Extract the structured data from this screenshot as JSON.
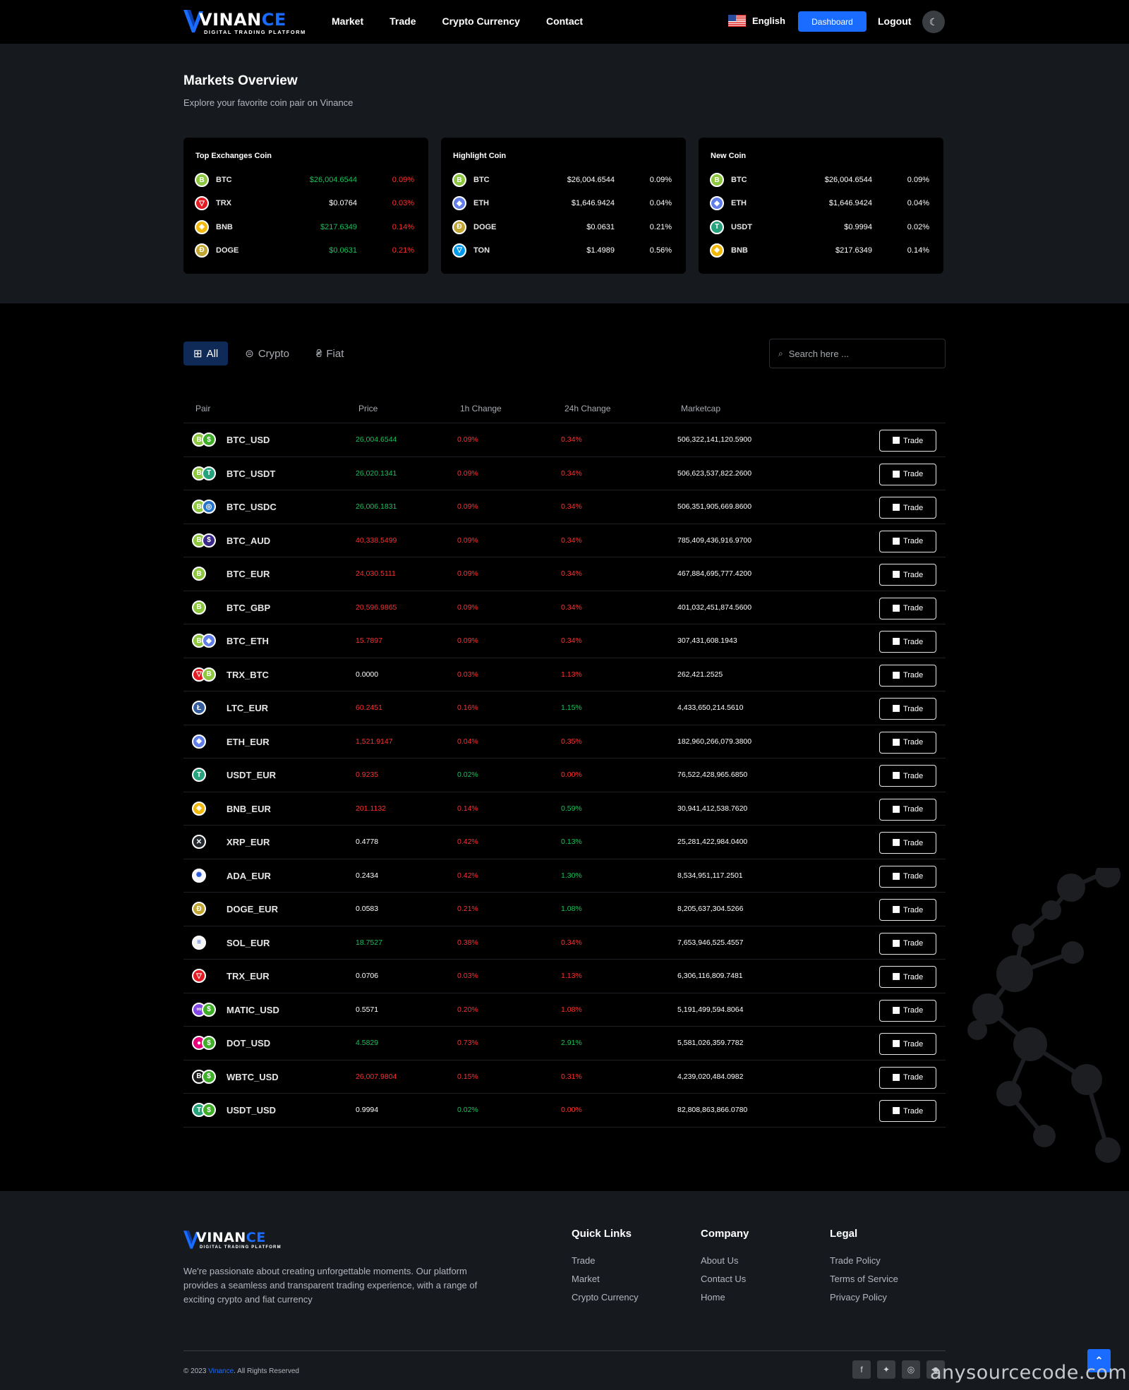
{
  "header": {
    "logo": {
      "part1": "VINAN",
      "part2": "CE",
      "sub": "DIGITAL TRADING PLATFORM"
    },
    "nav": [
      "Market",
      "Trade",
      "Crypto Currency",
      "Contact"
    ],
    "language": "English",
    "dashboard_label": "Dashboard",
    "logout_label": "Logout"
  },
  "overview": {
    "title": "Markets Overview",
    "subtitle": "Explore your favorite coin pair on Vinance",
    "cards": [
      {
        "title": "Top Exchanges Coin",
        "rows": [
          {
            "coin": "btc",
            "symbol": "BTC",
            "price": "$26,004.6544",
            "change": "0.09%",
            "price_color": "green",
            "change_color": "red"
          },
          {
            "coin": "trx",
            "symbol": "TRX",
            "price": "$0.0764",
            "change": "0.03%",
            "price_color": "white",
            "change_color": "red"
          },
          {
            "coin": "bnb",
            "symbol": "BNB",
            "price": "$217.6349",
            "change": "0.14%",
            "price_color": "green",
            "change_color": "red"
          },
          {
            "coin": "doge",
            "symbol": "DOGE",
            "price": "$0.0631",
            "change": "0.21%",
            "price_color": "green",
            "change_color": "red"
          }
        ]
      },
      {
        "title": "Highlight Coin",
        "rows": [
          {
            "coin": "btc",
            "symbol": "BTC",
            "price": "$26,004.6544",
            "change": "0.09%",
            "price_color": "white",
            "change_color": "white"
          },
          {
            "coin": "eth",
            "symbol": "ETH",
            "price": "$1,646.9424",
            "change": "0.04%",
            "price_color": "white",
            "change_color": "white"
          },
          {
            "coin": "doge",
            "symbol": "DOGE",
            "price": "$0.0631",
            "change": "0.21%",
            "price_color": "white",
            "change_color": "white"
          },
          {
            "coin": "ton",
            "symbol": "TON",
            "price": "$1.4989",
            "change": "0.56%",
            "price_color": "white",
            "change_color": "white"
          }
        ]
      },
      {
        "title": "New Coin",
        "rows": [
          {
            "coin": "btc",
            "symbol": "BTC",
            "price": "$26,004.6544",
            "change": "0.09%",
            "price_color": "white",
            "change_color": "white"
          },
          {
            "coin": "eth",
            "symbol": "ETH",
            "price": "$1,646.9424",
            "change": "0.04%",
            "price_color": "white",
            "change_color": "white"
          },
          {
            "coin": "usdt",
            "symbol": "USDT",
            "price": "$0.9994",
            "change": "0.02%",
            "price_color": "white",
            "change_color": "white"
          },
          {
            "coin": "bnb",
            "symbol": "BNB",
            "price": "$217.6349",
            "change": "0.14%",
            "price_color": "white",
            "change_color": "white"
          }
        ]
      }
    ]
  },
  "tabs": [
    {
      "label": "All",
      "icon": "grid-icon",
      "active": true
    },
    {
      "label": "Crypto",
      "icon": "coins-icon",
      "active": false
    },
    {
      "label": "Fiat",
      "icon": "currency-icon",
      "active": false
    }
  ],
  "search": {
    "placeholder": "Search here ...",
    "value": ""
  },
  "table": {
    "headers": [
      "Pair",
      "Price",
      "1h Change",
      "24h Change",
      "Marketcap"
    ],
    "trade_label": "Trade",
    "rows": [
      {
        "coins": [
          "btc",
          "usd"
        ],
        "pair": "BTC_USD",
        "price": "26,004.6544",
        "pc": "green",
        "h1": "0.09%",
        "h1c": "red",
        "h24": "0.34%",
        "h24c": "red",
        "cap": "506,322,141,120.5900"
      },
      {
        "coins": [
          "btc",
          "usdt"
        ],
        "pair": "BTC_USDT",
        "price": "26,020.1341",
        "pc": "green",
        "h1": "0.09%",
        "h1c": "red",
        "h24": "0.34%",
        "h24c": "red",
        "cap": "506,623,537,822.2600"
      },
      {
        "coins": [
          "btc",
          "usdc"
        ],
        "pair": "BTC_USDC",
        "price": "26,006.1831",
        "pc": "green",
        "h1": "0.09%",
        "h1c": "red",
        "h24": "0.34%",
        "h24c": "red",
        "cap": "506,351,905,669.8600"
      },
      {
        "coins": [
          "btc",
          "aud"
        ],
        "pair": "BTC_AUD",
        "price": "40,338.5499",
        "pc": "red",
        "h1": "0.09%",
        "h1c": "red",
        "h24": "0.34%",
        "h24c": "red",
        "cap": "785,409,436,916.9700"
      },
      {
        "coins": [
          "btc"
        ],
        "pair": "BTC_EUR",
        "price": "24,030.5111",
        "pc": "red",
        "h1": "0.09%",
        "h1c": "red",
        "h24": "0.34%",
        "h24c": "red",
        "cap": "467,884,695,777.4200"
      },
      {
        "coins": [
          "btc"
        ],
        "pair": "BTC_GBP",
        "price": "20,596.9865",
        "pc": "red",
        "h1": "0.09%",
        "h1c": "red",
        "h24": "0.34%",
        "h24c": "red",
        "cap": "401,032,451,874.5600"
      },
      {
        "coins": [
          "btc",
          "eth"
        ],
        "pair": "BTC_ETH",
        "price": "15.7897",
        "pc": "red",
        "h1": "0.09%",
        "h1c": "red",
        "h24": "0.34%",
        "h24c": "red",
        "cap": "307,431,608.1943"
      },
      {
        "coins": [
          "trx",
          "btc"
        ],
        "pair": "TRX_BTC",
        "price": "0.0000",
        "pc": "white",
        "h1": "0.03%",
        "h1c": "red",
        "h24": "1.13%",
        "h24c": "red",
        "cap": "262,421.2525"
      },
      {
        "coins": [
          "ltc"
        ],
        "pair": "LTC_EUR",
        "price": "60.2451",
        "pc": "red",
        "h1": "0.16%",
        "h1c": "red",
        "h24": "1.15%",
        "h24c": "green",
        "cap": "4,433,650,214.5610"
      },
      {
        "coins": [
          "eth"
        ],
        "pair": "ETH_EUR",
        "price": "1,521.9147",
        "pc": "red",
        "h1": "0.04%",
        "h1c": "red",
        "h24": "0.35%",
        "h24c": "red",
        "cap": "182,960,266,079.3800"
      },
      {
        "coins": [
          "usdt"
        ],
        "pair": "USDT_EUR",
        "price": "0.9235",
        "pc": "red",
        "h1": "0.02%",
        "h1c": "green",
        "h24": "0.00%",
        "h24c": "red",
        "cap": "76,522,428,965.6850"
      },
      {
        "coins": [
          "bnb"
        ],
        "pair": "BNB_EUR",
        "price": "201.1132",
        "pc": "red",
        "h1": "0.14%",
        "h1c": "red",
        "h24": "0.59%",
        "h24c": "green",
        "cap": "30,941,412,538.7620"
      },
      {
        "coins": [
          "xrp"
        ],
        "pair": "XRP_EUR",
        "price": "0.4778",
        "pc": "white",
        "h1": "0.42%",
        "h1c": "red",
        "h24": "0.13%",
        "h24c": "green",
        "cap": "25,281,422,984.0400"
      },
      {
        "coins": [
          "ada"
        ],
        "pair": "ADA_EUR",
        "price": "0.2434",
        "pc": "white",
        "h1": "0.42%",
        "h1c": "red",
        "h24": "1.30%",
        "h24c": "green",
        "cap": "8,534,951,117.2501"
      },
      {
        "coins": [
          "doge"
        ],
        "pair": "DOGE_EUR",
        "price": "0.0583",
        "pc": "white",
        "h1": "0.21%",
        "h1c": "red",
        "h24": "1.08%",
        "h24c": "green",
        "cap": "8,205,637,304.5266"
      },
      {
        "coins": [
          "sol"
        ],
        "pair": "SOL_EUR",
        "price": "18.7527",
        "pc": "green",
        "h1": "0.38%",
        "h1c": "red",
        "h24": "0.34%",
        "h24c": "red",
        "cap": "7,653,946,525.4557"
      },
      {
        "coins": [
          "trx"
        ],
        "pair": "TRX_EUR",
        "price": "0.0706",
        "pc": "white",
        "h1": "0.03%",
        "h1c": "red",
        "h24": "1.13%",
        "h24c": "red",
        "cap": "6,306,116,809.7481"
      },
      {
        "coins": [
          "matic",
          "usd"
        ],
        "pair": "MATIC_USD",
        "price": "0.5571",
        "pc": "white",
        "h1": "0.20%",
        "h1c": "red",
        "h24": "1.08%",
        "h24c": "red",
        "cap": "5,191,499,594.8064"
      },
      {
        "coins": [
          "dot",
          "usd"
        ],
        "pair": "DOT_USD",
        "price": "4.5829",
        "pc": "green",
        "h1": "0.73%",
        "h1c": "red",
        "h24": "2.91%",
        "h24c": "green",
        "cap": "5,581,026,359.7782"
      },
      {
        "coins": [
          "wbtc",
          "usd"
        ],
        "pair": "WBTC_USD",
        "price": "26,007.9804",
        "pc": "red",
        "h1": "0.15%",
        "h1c": "red",
        "h24": "0.31%",
        "h24c": "red",
        "cap": "4,239,020,484.0982"
      },
      {
        "coins": [
          "usdt",
          "usd"
        ],
        "pair": "USDT_USD",
        "price": "0.9994",
        "pc": "white",
        "h1": "0.02%",
        "h1c": "green",
        "h24": "0.00%",
        "h24c": "red",
        "cap": "82,808,863,866.0780"
      }
    ]
  },
  "coin_styles": {
    "btc": {
      "bg": "#8dc63f",
      "glyph": "B"
    },
    "usd": {
      "bg": "#3fae29",
      "glyph": "$"
    },
    "usdt": {
      "bg": "#26a17b",
      "glyph": "T"
    },
    "usdc": {
      "bg": "#2775ca",
      "glyph": "◎"
    },
    "aud": {
      "bg": "#3b2a8a",
      "glyph": "$"
    },
    "eth": {
      "bg": "#627eea",
      "glyph": "◆"
    },
    "trx": {
      "bg": "#e51b23",
      "glyph": "▽"
    },
    "bnb": {
      "bg": "#f0b90b",
      "glyph": "◈"
    },
    "doge": {
      "bg": "#c2a633",
      "glyph": "Ð"
    },
    "ton": {
      "bg": "#0098ea",
      "glyph": "▽"
    },
    "ltc": {
      "bg": "#345d9d",
      "glyph": "Ł"
    },
    "xrp": {
      "bg": "#23292f",
      "glyph": "✕"
    },
    "ada": {
      "bg": "#f4f6fb",
      "glyph": "✺"
    },
    "sol": {
      "bg": "#f5f5f5",
      "glyph": "≡"
    },
    "matic": {
      "bg": "#8247e5",
      "glyph": "∞"
    },
    "dot": {
      "bg": "#e6007a",
      "glyph": "●"
    },
    "wbtc": {
      "bg": "#1c1c1c",
      "glyph": "B"
    }
  },
  "footer": {
    "description": "We're passionate about creating unforgettable moments. Our platform provides a seamless and transparent trading experience, with a range of exciting crypto and fiat currency",
    "columns": [
      {
        "title": "Quick Links",
        "links": [
          "Trade",
          "Market",
          "Crypto Currency"
        ]
      },
      {
        "title": "Company",
        "links": [
          "About Us",
          "Contact Us",
          "Home"
        ]
      },
      {
        "title": "Legal",
        "links": [
          "Trade Policy",
          "Terms of Service",
          "Privacy Policy"
        ]
      }
    ],
    "copyright_prefix": "© 2023 ",
    "copyright_brand": "Vinance",
    "copyright_suffix": ". All Rights Reserved",
    "social": [
      "facebook-icon",
      "twitter-icon",
      "instagram-icon",
      "discord-icon"
    ]
  },
  "watermark": "anysourcecode.com",
  "colors": {
    "accent": "#1a6bff",
    "green": "#18c25a",
    "red": "#ff2f2f",
    "panel": "#161a1e"
  }
}
